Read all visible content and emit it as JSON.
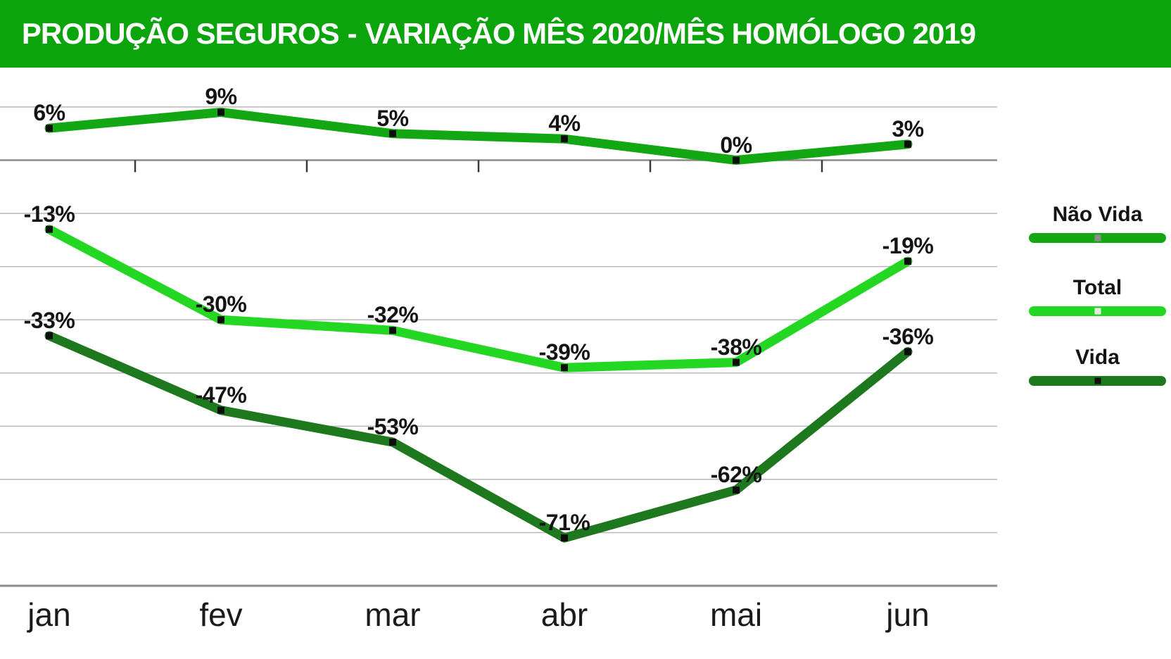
{
  "header": {
    "title_primary": "PRODUÇÃO SEGUROS",
    "title_separator": "-",
    "title_secondary": "VARIAÇÃO MÊS 2020/MÊS HOMÓLOGO 2019",
    "bg_color": "#0CA40C",
    "text_color": "#FFFFFF"
  },
  "chart_data": {
    "type": "line",
    "title": "PRODUÇÃO SEGUROS - VARIAÇÃO MÊS 2020/MÊS HOMÓLOGO 2019",
    "categories": [
      "jan",
      "fev",
      "mar",
      "abr",
      "mai",
      "jun"
    ],
    "series": [
      {
        "name": "Não Vida",
        "values": [
          6,
          9,
          5,
          4,
          0,
          3
        ],
        "labels": [
          "6%",
          "9%",
          "5%",
          "4%",
          "0%",
          "3%"
        ],
        "color": "#13A713",
        "legend_marker_color": "#8C8C8C"
      },
      {
        "name": "Total",
        "values": [
          -13,
          -30,
          -32,
          -39,
          -38,
          -19
        ],
        "labels": [
          "-13%",
          "-30%",
          "-32%",
          "-39%",
          "-38%",
          "-19%"
        ],
        "color": "#23D723",
        "legend_marker_color": "#E8E8E8"
      },
      {
        "name": "Vida",
        "values": [
          -33,
          -47,
          -53,
          -71,
          -62,
          -36
        ],
        "labels": [
          "-33%",
          "-47%",
          "-53%",
          "-71%",
          "-62%",
          "-36%"
        ],
        "color": "#1E781E",
        "legend_marker_color": "#111111"
      }
    ],
    "ylim": [
      -80,
      10
    ],
    "gridline_step": 10,
    "grid": true,
    "zero_axis": true,
    "legend_position": "right",
    "point_marker_color": "#0D0D0D",
    "gridline_color": "#B8B8B8",
    "axis_line_color": "#8A8A8A",
    "tick_color": "#3A3A3A"
  }
}
